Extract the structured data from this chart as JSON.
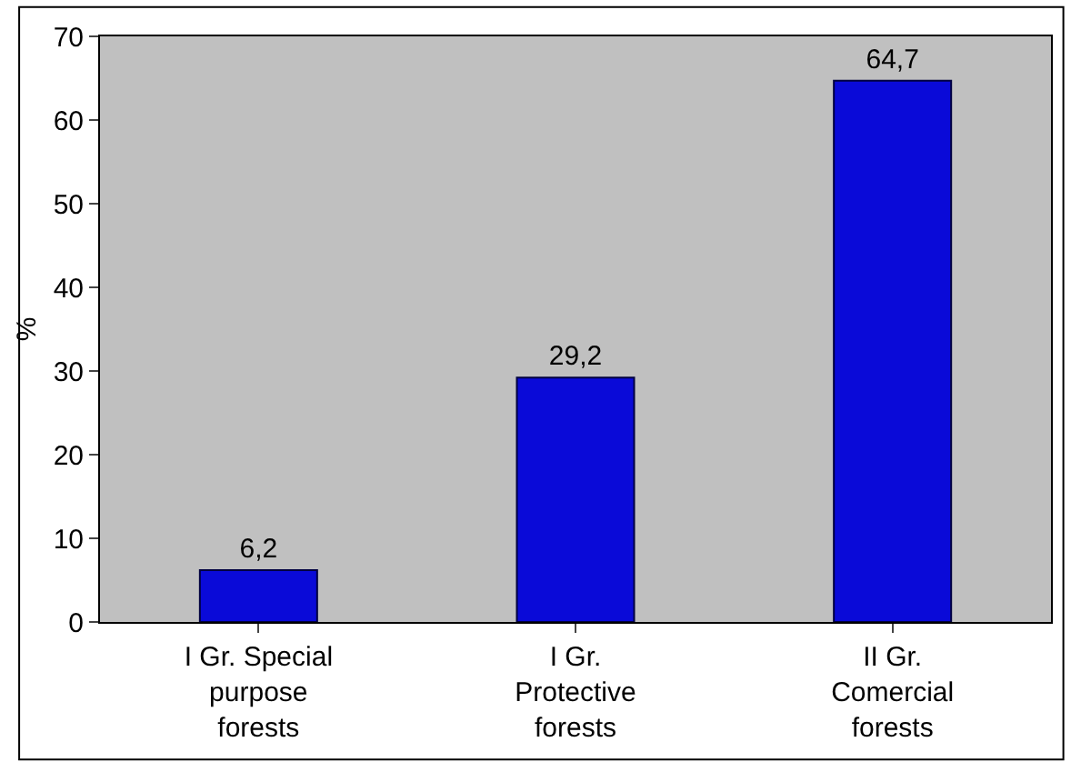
{
  "chart_data": {
    "type": "bar",
    "categories": [
      "I Gr. Special purpose forests",
      "I Gr. Protective forests",
      "II Gr. Comercial forests"
    ],
    "values": [
      6.2,
      29.2,
      64.7
    ],
    "value_labels": [
      "6,2",
      "29,2",
      "64,7"
    ],
    "color": "#0a0ad8",
    "ylabel": "%",
    "ylim": [
      0,
      70
    ],
    "yticks": [
      0,
      10,
      20,
      30,
      40,
      50,
      60,
      70
    ],
    "grid": false,
    "legend": false
  }
}
